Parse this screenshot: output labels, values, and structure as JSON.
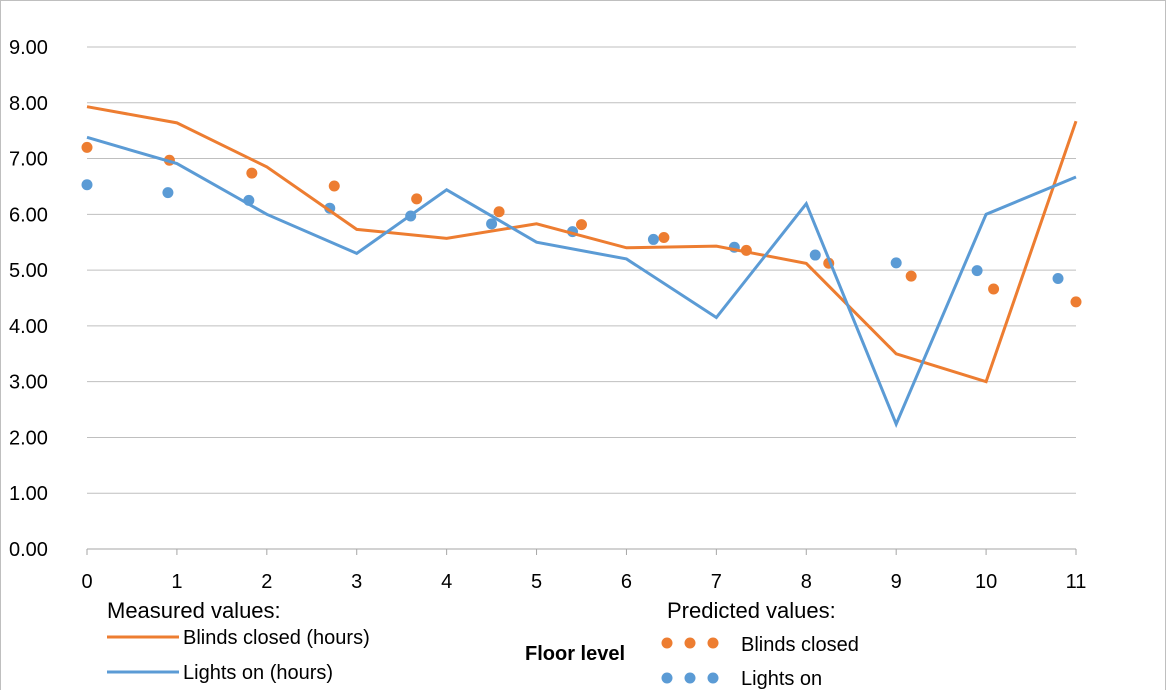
{
  "chart_data": {
    "type": "line",
    "xlabel": "Floor level",
    "ylabel": "",
    "title": "",
    "xlim": [
      0,
      11
    ],
    "ylim": [
      0,
      9
    ],
    "x_ticks": [
      "0",
      "1",
      "2",
      "3",
      "4",
      "5",
      "6",
      "7",
      "8",
      "9",
      "10",
      "11"
    ],
    "y_ticks": [
      "0.00",
      "1.00",
      "2.00",
      "3.00",
      "4.00",
      "5.00",
      "6.00",
      "7.00",
      "8.00",
      "9.00"
    ],
    "grid": "horizontal",
    "measured": {
      "legend_title": "Measured values:",
      "x": [
        0,
        1,
        2,
        3,
        4,
        5,
        6,
        7,
        8,
        9,
        10,
        11
      ],
      "series": [
        {
          "name": "Blinds closed (hours)",
          "color": "#ED7D31",
          "values": [
            7.93,
            7.64,
            6.85,
            5.73,
            5.57,
            5.83,
            5.4,
            5.43,
            5.12,
            3.5,
            3.0,
            7.67
          ]
        },
        {
          "name": "Lights on (hours)",
          "color": "#5B9BD5",
          "values": [
            7.38,
            6.91,
            6.0,
            5.3,
            6.44,
            5.5,
            5.2,
            4.15,
            6.19,
            2.24,
            6.0,
            6.67
          ]
        }
      ]
    },
    "predicted": {
      "legend_title": "Predicted values:",
      "series": [
        {
          "name": "Blinds closed",
          "color": "#ED7D31",
          "x_range": [
            0,
            11
          ],
          "y_start": 7.2,
          "y_end": 4.43
        },
        {
          "name": "Lights on",
          "color": "#5B9BD5",
          "x_range": [
            0,
            10.8
          ],
          "y_start": 6.53,
          "y_end": 4.85
        }
      ]
    }
  }
}
